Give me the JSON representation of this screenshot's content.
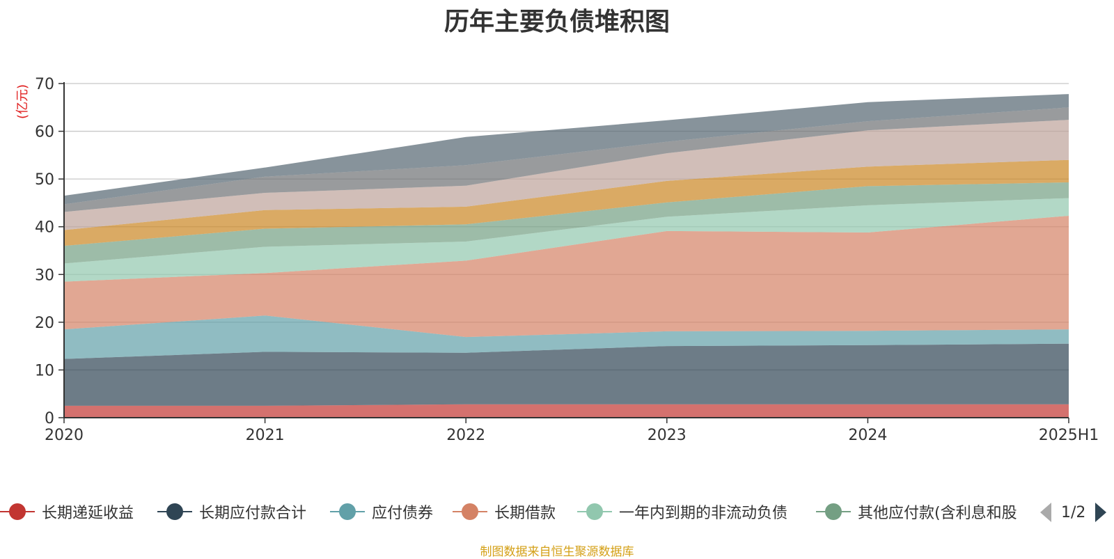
{
  "title": "历年主要负债堆积图",
  "source": "制图数据来自恒生聚源数据库",
  "legend_visible": [
    {
      "name": "长期递延收益",
      "color": "#c23531"
    },
    {
      "name": "长期应付款合计",
      "color": "#2f4554"
    },
    {
      "name": "应付债券",
      "color": "#61a0a8"
    },
    {
      "name": "长期借款",
      "color": "#d48265"
    },
    {
      "name": "一年内到期的非流动负债",
      "color": "#91c7ae"
    },
    {
      "name": "其他应付款(含利息和股",
      "color": "#749f83"
    }
  ],
  "pager": {
    "text": "1/2"
  },
  "chart_data": {
    "type": "area",
    "stacked": true,
    "ylabel": "(亿元)",
    "ylim": [
      0,
      70
    ],
    "yticks": [
      0,
      10,
      20,
      30,
      40,
      50,
      60,
      70
    ],
    "grid": true,
    "legend_position": "bottom",
    "categories": [
      "2020",
      "2021",
      "2022",
      "2023",
      "2024",
      "2025H1"
    ],
    "series": [
      {
        "name": "长期递延收益",
        "color": "#c23531",
        "values": [
          2.5,
          2.5,
          2.8,
          2.8,
          2.8,
          2.8
        ]
      },
      {
        "name": "长期应付款合计",
        "color": "#2f4554",
        "values": [
          9.8,
          11.3,
          10.8,
          12.2,
          12.4,
          12.7
        ]
      },
      {
        "name": "应付债券",
        "color": "#61a0a8",
        "values": [
          6.2,
          7.6,
          3.3,
          3.1,
          3.0,
          3.0
        ]
      },
      {
        "name": "长期借款",
        "color": "#d48265",
        "values": [
          10.0,
          8.9,
          16.0,
          21.0,
          20.6,
          23.8
        ]
      },
      {
        "name": "一年内到期的非流动负债",
        "color": "#91c7ae",
        "values": [
          3.8,
          5.5,
          4.0,
          3.0,
          5.7,
          3.7
        ]
      },
      {
        "name": "其他应付款(含利息和股",
        "color": "#749f83",
        "values": [
          3.7,
          3.8,
          3.6,
          3.0,
          4.0,
          3.3
        ]
      },
      {
        "name": "",
        "color": "#ca8622",
        "values": [
          3.3,
          3.9,
          3.7,
          4.5,
          4.1,
          4.7
        ]
      },
      {
        "name": "",
        "color": "#bda29a",
        "values": [
          3.8,
          3.6,
          4.4,
          5.8,
          7.6,
          8.4
        ]
      },
      {
        "name": "",
        "color": "#6e7074",
        "values": [
          1.6,
          3.4,
          4.3,
          2.4,
          1.9,
          2.6
        ]
      },
      {
        "name": "",
        "color": "#546570",
        "values": [
          1.8,
          1.9,
          5.9,
          4.5,
          4.0,
          2.8
        ]
      }
    ]
  }
}
